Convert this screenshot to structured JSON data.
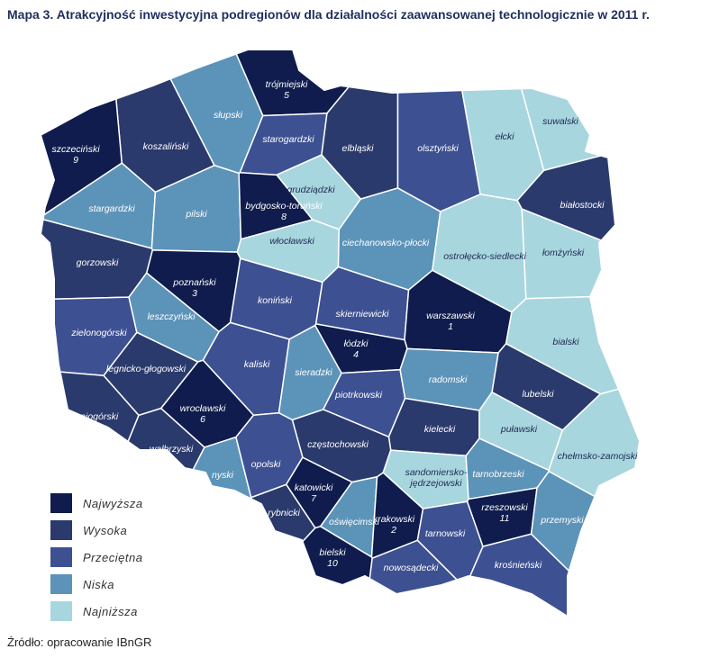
{
  "title": "Mapa 3. Atrakcyjność inwestycyjna podregionów dla działalności zaawansowanej technologicznie w 2011 r.",
  "legend": [
    {
      "label": "Najwyższa",
      "color": "#0f1c4d"
    },
    {
      "label": "Wysoka",
      "color": "#2b3a6c"
    },
    {
      "label": "Przeciętna",
      "color": "#3d5092"
    },
    {
      "label": "Niska",
      "color": "#5c93b9"
    },
    {
      "label": "Najniższa",
      "color": "#a8d6de"
    }
  ],
  "regions": [
    {
      "name": "trójmiejski",
      "rank": 5,
      "level": 0
    },
    {
      "name": "słupski",
      "level": 3
    },
    {
      "name": "koszaliński",
      "level": 1
    },
    {
      "name": "szczeciński",
      "rank": 9,
      "level": 0
    },
    {
      "name": "starogardzki",
      "level": 2
    },
    {
      "name": "elbląski",
      "level": 1
    },
    {
      "name": "olsztyński",
      "level": 2
    },
    {
      "name": "ełcki",
      "level": 4
    },
    {
      "name": "suwalski",
      "level": 4
    },
    {
      "name": "białostocki",
      "level": 1
    },
    {
      "name": "łomżyński",
      "level": 4
    },
    {
      "name": "stargardzki",
      "level": 3
    },
    {
      "name": "pilski",
      "level": 3
    },
    {
      "name": "grudziądzki",
      "level": 4
    },
    {
      "name": "bydgosko-toruński",
      "rank": 8,
      "level": 0
    },
    {
      "name": "włocławski",
      "level": 4
    },
    {
      "name": "ciechanowsko-płocki",
      "level": 3
    },
    {
      "name": "ostrołęcko-siedlecki",
      "level": 4
    },
    {
      "name": "gorzowski",
      "level": 1
    },
    {
      "name": "poznański",
      "rank": 3,
      "level": 0
    },
    {
      "name": "koniński",
      "level": 2
    },
    {
      "name": "skierniewicki",
      "level": 2
    },
    {
      "name": "warszawski",
      "rank": 1,
      "level": 0
    },
    {
      "name": "zielonogórski",
      "level": 2
    },
    {
      "name": "leszczyński",
      "level": 3
    },
    {
      "name": "łódzki",
      "rank": 4,
      "level": 0
    },
    {
      "name": "bialski",
      "level": 4
    },
    {
      "name": "kaliski",
      "level": 2
    },
    {
      "name": "sieradzki",
      "level": 3
    },
    {
      "name": "legnicko-głogowski",
      "level": 1
    },
    {
      "name": "piotrkowski",
      "level": 2
    },
    {
      "name": "radomski",
      "level": 3
    },
    {
      "name": "lubelski",
      "level": 1
    },
    {
      "name": "jeleniogórski",
      "level": 1
    },
    {
      "name": "wrocławski",
      "rank": 6,
      "level": 0
    },
    {
      "name": "kielecki",
      "level": 1
    },
    {
      "name": "puławski",
      "level": 4
    },
    {
      "name": "wałbrzyski",
      "level": 1
    },
    {
      "name": "częstochowski",
      "level": 1
    },
    {
      "name": "nyski",
      "level": 3
    },
    {
      "name": "opolski",
      "level": 2
    },
    {
      "name": "chełmsko-zamojski",
      "level": 4
    },
    {
      "name": "sandomiersko-jędrzejowski",
      "level": 4
    },
    {
      "name": "tarnobrzeski",
      "level": 3
    },
    {
      "name": "katowicki",
      "rank": 7,
      "level": 0
    },
    {
      "name": "rybnicki",
      "level": 1
    },
    {
      "name": "oświęcimski",
      "level": 3
    },
    {
      "name": "krakowski",
      "rank": 2,
      "level": 0
    },
    {
      "name": "rzeszowski",
      "rank": 11,
      "level": 0
    },
    {
      "name": "tarnowski",
      "level": 2
    },
    {
      "name": "przemyski",
      "level": 3
    },
    {
      "name": "bielski",
      "rank": 10,
      "level": 0
    },
    {
      "name": "nowosądecki",
      "level": 2
    },
    {
      "name": "krośnieński",
      "level": 2
    }
  ],
  "source": "Źródło: opracowanie IBnGR"
}
